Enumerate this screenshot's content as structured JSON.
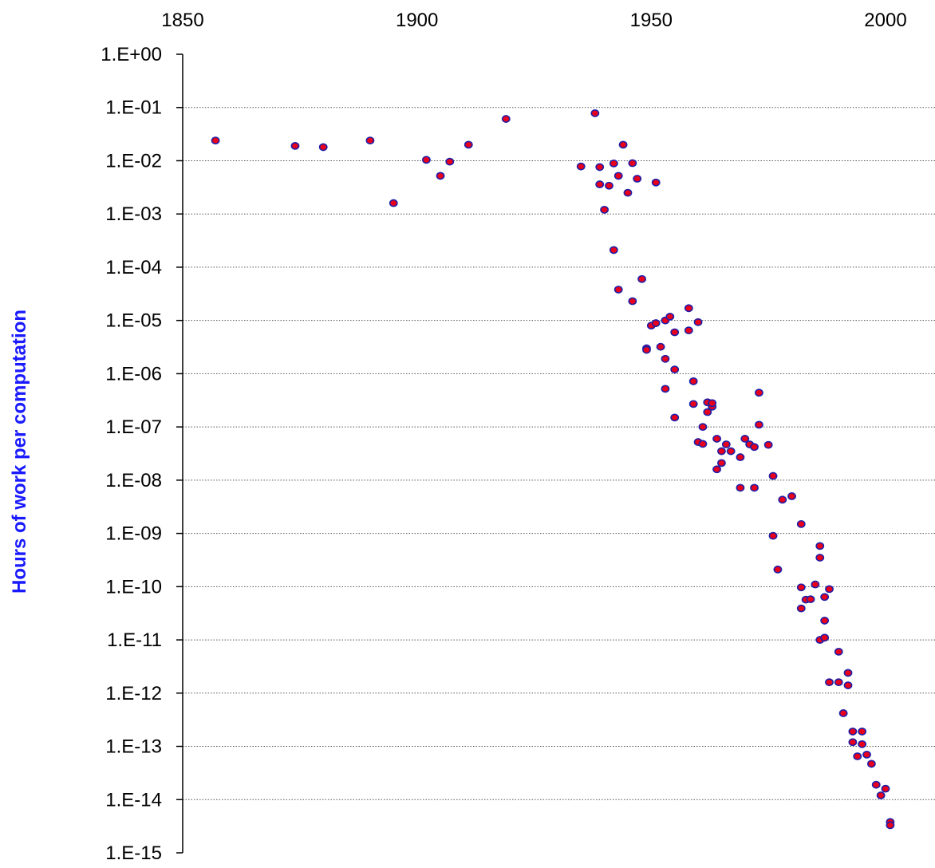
{
  "colors": {
    "marker_fill": "#e8001c",
    "marker_stroke": "#1f1fa8",
    "ylabel": "#1a1aff",
    "grid": "#555555",
    "axis": "#000000"
  },
  "chart_data": {
    "type": "scatter",
    "title": "",
    "xlabel": "",
    "ylabel": "Hours of work per computation",
    "xlim": [
      1850,
      2010
    ],
    "ylim": [
      1e-15,
      1
    ],
    "yscale": "log",
    "grid": "horizontal dotted",
    "legend": "none",
    "x_ticks": [
      1850,
      1900,
      1950,
      2000
    ],
    "x_tick_labels": [
      "1850",
      "1900",
      "1950",
      "2000"
    ],
    "x_axis_position": "top",
    "y_ticks": [
      1.0,
      0.1,
      0.01,
      0.001,
      0.0001,
      1e-05,
      1e-06,
      1e-07,
      1e-08,
      1e-09,
      1e-10,
      1e-11,
      1e-12,
      1e-13,
      1e-14,
      1e-15
    ],
    "y_tick_labels": [
      "1.E+00",
      "1.E-01",
      "1.E-02",
      "1.E-03",
      "1.E-04",
      "1.E-05",
      "1.E-06",
      "1.E-07",
      "1.E-08",
      "1.E-09",
      "1.E-10",
      "1.E-11",
      "1.E-12",
      "1.E-13",
      "1.E-14",
      "1.E-15"
    ],
    "series": [
      {
        "points": [
          [
            1857,
            0.024
          ],
          [
            1874,
            0.019
          ],
          [
            1880,
            0.018
          ],
          [
            1890,
            0.024
          ],
          [
            1895,
            0.0016
          ],
          [
            1902,
            0.0104
          ],
          [
            1905,
            0.0052
          ],
          [
            1907,
            0.0096
          ],
          [
            1911,
            0.02
          ],
          [
            1919,
            0.061
          ],
          [
            1935,
            0.0078
          ],
          [
            1938,
            0.078
          ],
          [
            1939,
            0.0076
          ],
          [
            1939,
            0.0036
          ],
          [
            1940,
            0.0012
          ],
          [
            1941,
            0.0034
          ],
          [
            1942,
            0.0089
          ],
          [
            1942,
            0.00021
          ],
          [
            1943,
            0.0052
          ],
          [
            1943,
            3.8e-05
          ],
          [
            1944,
            0.02
          ],
          [
            1945,
            0.0025
          ],
          [
            1946,
            0.009
          ],
          [
            1946,
            2.3e-05
          ],
          [
            1947,
            0.0046
          ],
          [
            1948,
            6e-05
          ],
          [
            1949,
            3e-06
          ],
          [
            1949,
            2.8e-06
          ],
          [
            1950,
            8e-06
          ],
          [
            1951,
            8.9e-06
          ],
          [
            1951,
            0.0039
          ],
          [
            1952,
            3.2e-06
          ],
          [
            1953,
            1e-05
          ],
          [
            1953,
            1.9e-06
          ],
          [
            1953,
            5.2e-07
          ],
          [
            1954,
            1.18e-05
          ],
          [
            1955,
            6e-06
          ],
          [
            1955,
            1.2e-06
          ],
          [
            1955,
            1.5e-07
          ],
          [
            1958,
            1.7e-05
          ],
          [
            1958,
            6.5e-06
          ],
          [
            1959,
            7.2e-07
          ],
          [
            1959,
            2.7e-07
          ],
          [
            1960,
            9.3e-06
          ],
          [
            1960,
            5.2e-08
          ],
          [
            1961,
            1e-07
          ],
          [
            1961,
            4.8e-08
          ],
          [
            1962,
            2.9e-07
          ],
          [
            1962,
            1.9e-07
          ],
          [
            1963,
            2.4e-07
          ],
          [
            1963,
            2.8e-07
          ],
          [
            1964,
            6e-08
          ],
          [
            1964,
            1.6e-08
          ],
          [
            1965,
            3.5e-08
          ],
          [
            1965,
            2.1e-08
          ],
          [
            1966,
            4.7e-08
          ],
          [
            1967,
            3.5e-08
          ],
          [
            1969,
            2.7e-08
          ],
          [
            1969,
            7.2e-09
          ],
          [
            1970,
            6e-08
          ],
          [
            1971,
            4.7e-08
          ],
          [
            1972,
            4.2e-08
          ],
          [
            1972,
            7.2e-09
          ],
          [
            1973,
            4.4e-07
          ],
          [
            1973,
            1.1e-07
          ],
          [
            1975,
            4.6e-08
          ],
          [
            1976,
            1.2e-08
          ],
          [
            1976,
            9e-10
          ],
          [
            1977,
            2.1e-10
          ],
          [
            1978,
            4.3e-09
          ],
          [
            1980,
            5e-09
          ],
          [
            1982,
            1.5e-09
          ],
          [
            1982,
            9.7e-11
          ],
          [
            1982,
            3.9e-11
          ],
          [
            1983,
            5.7e-11
          ],
          [
            1984,
            5.8e-11
          ],
          [
            1985,
            1.1e-10
          ],
          [
            1986,
            5.8e-10
          ],
          [
            1986,
            3.5e-10
          ],
          [
            1986,
            1e-11
          ],
          [
            1987,
            6.4e-11
          ],
          [
            1987,
            2.3e-11
          ],
          [
            1987,
            1.1e-11
          ],
          [
            1988,
            9e-11
          ],
          [
            1988,
            1.6e-12
          ],
          [
            1990,
            6e-12
          ],
          [
            1990,
            1.6e-12
          ],
          [
            1991,
            4.2e-13
          ],
          [
            1992,
            2.4e-12
          ],
          [
            1992,
            1.4e-12
          ],
          [
            1993,
            1.9e-13
          ],
          [
            1993,
            1.2e-13
          ],
          [
            1994,
            6.5e-14
          ],
          [
            1995,
            1.9e-13
          ],
          [
            1995,
            1.1e-13
          ],
          [
            1996,
            7e-14
          ],
          [
            1997,
            4.7e-14
          ],
          [
            1998,
            1.9e-14
          ],
          [
            1999,
            1.2e-14
          ],
          [
            2000,
            1.6e-14
          ],
          [
            2001,
            3.8e-15
          ],
          [
            2001,
            3.3e-15
          ]
        ]
      }
    ]
  }
}
